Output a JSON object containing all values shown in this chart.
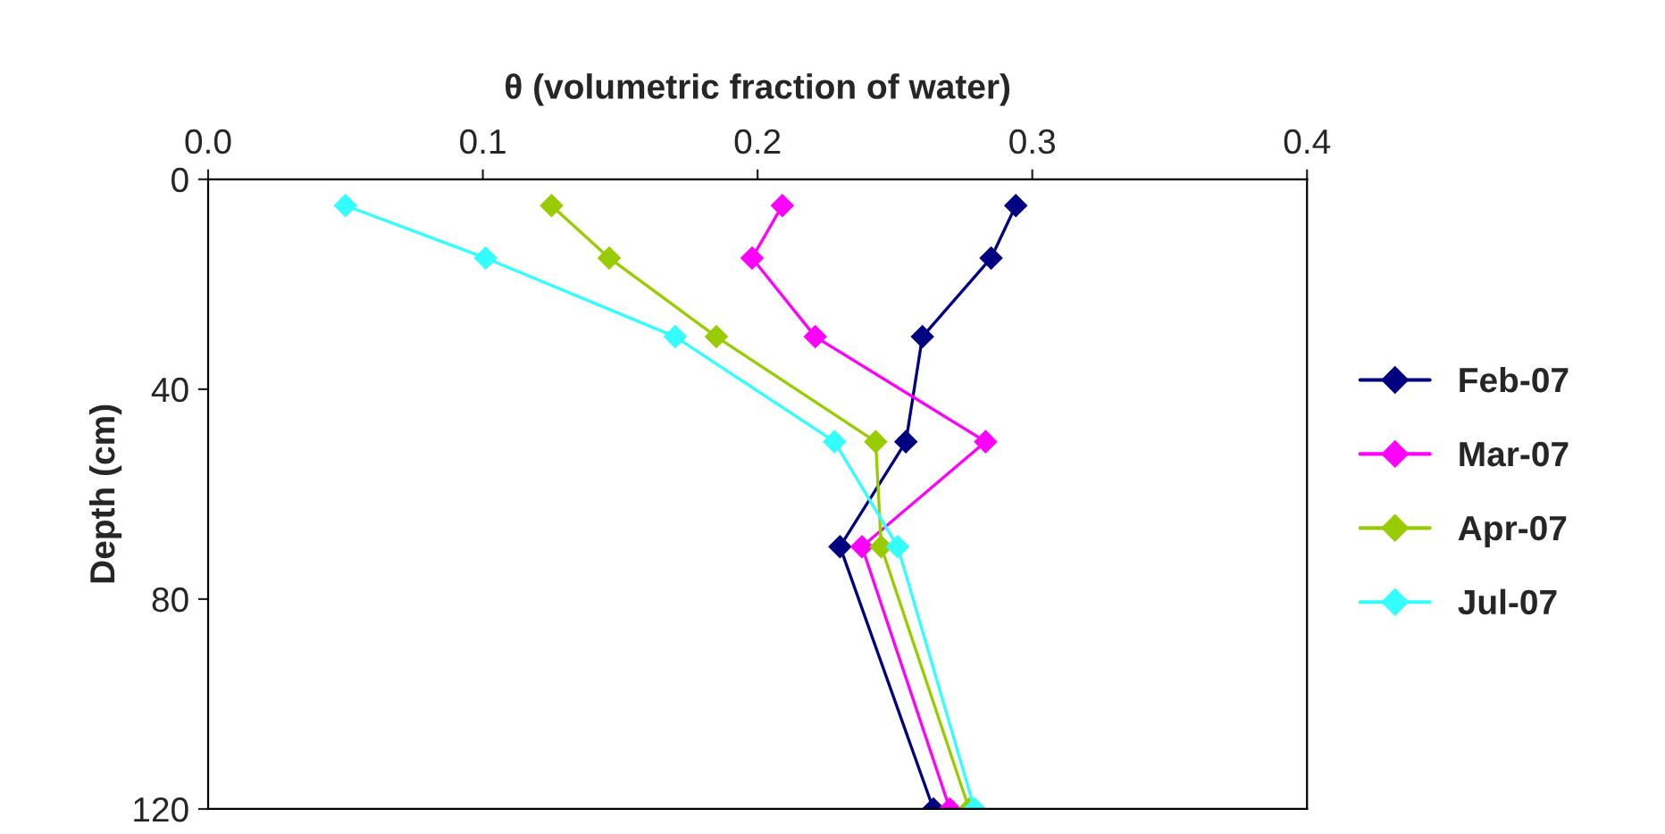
{
  "chart_data": {
    "type": "line",
    "xlabel": "θ (volumetric fraction of water)",
    "ylabel": "Depth (cm)",
    "xlim": [
      0,
      0.4
    ],
    "xticks": [
      {
        "value": 0,
        "label": "0.0"
      },
      0.1,
      0.2,
      0.3,
      0.4
    ],
    "ylim": [
      120,
      0
    ],
    "yticks": [
      0,
      40,
      80,
      120
    ],
    "grid": false,
    "legend": "right",
    "marker": "diamond",
    "line_style": "solid",
    "series": [
      {
        "name": "Feb-07",
        "color": "#000080",
        "x": [
          0.294,
          0.285,
          0.26,
          0.254,
          0.23,
          0.264
        ],
        "values": [
          5,
          15,
          30,
          50,
          70,
          120
        ]
      },
      {
        "name": "Mar-07",
        "color": "#ff00ff",
        "x": [
          0.209,
          0.198,
          0.221,
          0.283,
          0.238,
          0.27
        ],
        "values": [
          5,
          15,
          30,
          50,
          70,
          120
        ]
      },
      {
        "name": "Apr-07",
        "color": "#99cc00",
        "x": [
          0.125,
          0.146,
          0.185,
          0.243,
          0.245,
          0.277
        ],
        "values": [
          5,
          15,
          30,
          50,
          70,
          120
        ]
      },
      {
        "name": "Jul-07",
        "color": "#33ffff",
        "x": [
          0.05,
          0.101,
          0.17,
          0.228,
          0.251,
          0.279
        ],
        "values": [
          5,
          15,
          30,
          50,
          70,
          120
        ]
      }
    ]
  }
}
